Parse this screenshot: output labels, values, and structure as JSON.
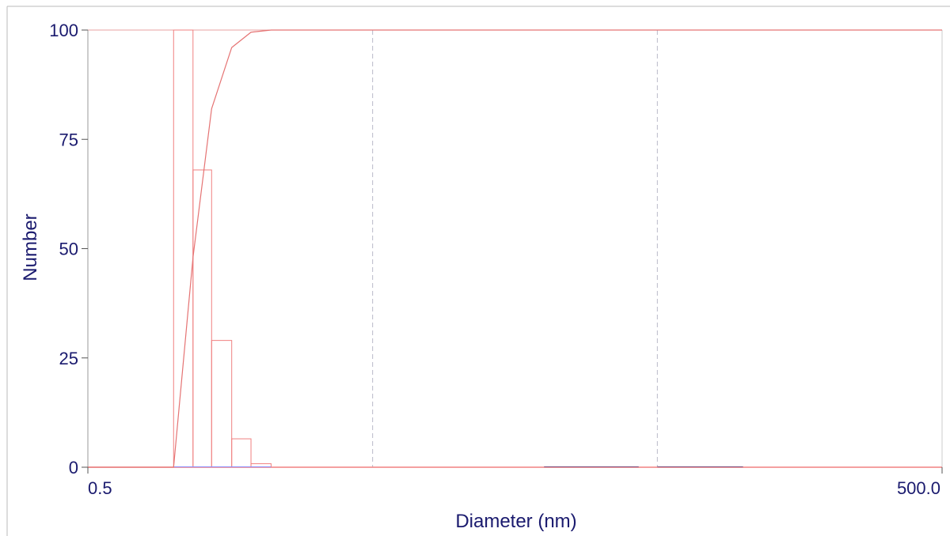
{
  "chart_data": {
    "type": "bar",
    "xlabel": "Diameter (nm)",
    "ylabel": "Number",
    "x_scale": "log",
    "xlim": [
      0.5,
      500.0
    ],
    "ylim": [
      0,
      100
    ],
    "x_tick_labels": [
      "0.5",
      "500.0"
    ],
    "y_tick_labels": [
      "0",
      "25",
      "50",
      "75",
      "100"
    ],
    "grid": "vertical-dashed",
    "histogram": {
      "bin_edges": [
        1.0,
        1.17,
        1.36,
        1.6,
        1.87,
        2.2
      ],
      "values": [
        100,
        68,
        29,
        6.5,
        0.8
      ],
      "color": "#f08080"
    },
    "cumulative": {
      "x": [
        0.5,
        1.0,
        1.17,
        1.36,
        1.6,
        1.87,
        2.2,
        500.0
      ],
      "y": [
        0,
        0,
        48,
        82,
        96,
        99.5,
        100,
        100
      ],
      "color": "#e57373"
    },
    "baseline_color": "#8c8cff"
  }
}
